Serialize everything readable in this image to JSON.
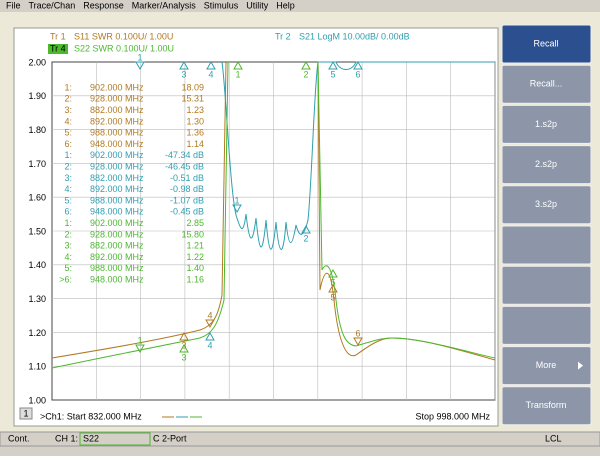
{
  "menu": [
    "File",
    "Trace/Chan",
    "Response",
    "Marker/Analysis",
    "Stimulus",
    "Utility",
    "Help"
  ],
  "traces": [
    {
      "id": "Tr 1",
      "text": "S11 SWR 0.100U/ 1.00U",
      "color": "#b07a22"
    },
    {
      "id": "Tr 4",
      "text": "S22 SWR 0.100U/ 1.00U",
      "color": "#4cb82e"
    },
    {
      "id": "Tr 2",
      "text": "S21 LogM 10.00dB/ 0.00dB",
      "color": "#2f9fb0"
    }
  ],
  "y_axis_labels": [
    "2.00",
    "1.90",
    "1.80",
    "1.70",
    "1.60",
    "1.50",
    "1.40",
    "1.30",
    "1.20",
    "1.10",
    "1.00"
  ],
  "marker_groups": [
    {
      "color": "#b07a22",
      "rows": [
        {
          "index": "1:",
          "freq": "902.000 MHz",
          "value": "18.09"
        },
        {
          "index": "2:",
          "freq": "928.000 MHz",
          "value": "15.31"
        },
        {
          "index": "3:",
          "freq": "882.000 MHz",
          "value": "1.23"
        },
        {
          "index": "4:",
          "freq": "892.000 MHz",
          "value": "1.30"
        },
        {
          "index": "5:",
          "freq": "988.000 MHz",
          "value": "1.36"
        },
        {
          "index": "6:",
          "freq": "948.000 MHz",
          "value": "1.14"
        }
      ]
    },
    {
      "color": "#2f9fb0",
      "rows": [
        {
          "index": "1:",
          "freq": "902.000 MHz",
          "value": "-47.34 dB"
        },
        {
          "index": "2:",
          "freq": "928.000 MHz",
          "value": "-46.45 dB"
        },
        {
          "index": "3:",
          "freq": "882.000 MHz",
          "value": "-0.51 dB"
        },
        {
          "index": "4:",
          "freq": "892.000 MHz",
          "value": "-0.98 dB"
        },
        {
          "index": "5:",
          "freq": "988.000 MHz",
          "value": "-1.07 dB"
        },
        {
          "index": "6:",
          "freq": "948.000 MHz",
          "value": "-0.45 dB"
        }
      ]
    },
    {
      "color": "#4cb82e",
      "rows": [
        {
          "index": "1:",
          "freq": "902.000 MHz",
          "value": "2.85"
        },
        {
          "index": "2:",
          "freq": "928.000 MHz",
          "value": "15.80"
        },
        {
          "index": "3:",
          "freq": "882.000 MHz",
          "value": "1.21"
        },
        {
          "index": "4:",
          "freq": "892.000 MHz",
          "value": "1.22"
        },
        {
          "index": "5:",
          "freq": "988.000 MHz",
          "value": "1.40"
        },
        {
          "index": ">6:",
          "freq": "948.000 MHz",
          "value": "1.16"
        }
      ]
    }
  ],
  "plot_marker_labels": [
    "1",
    "2",
    "3",
    "4",
    "5",
    "6"
  ],
  "footer": {
    "channel": "1",
    "start": ">Ch1: Start 832.000 MHz",
    "stop": "Stop 998.000 MHz"
  },
  "status": {
    "mode": "Cont.",
    "channel": "CH 1:",
    "param": "S22",
    "port": "C 2-Port",
    "ref": "LCL"
  },
  "softkeys": [
    "Recall",
    "Recall...",
    "1.s2p",
    "2.s2p",
    "3.s2p",
    "More",
    "Transform"
  ]
}
